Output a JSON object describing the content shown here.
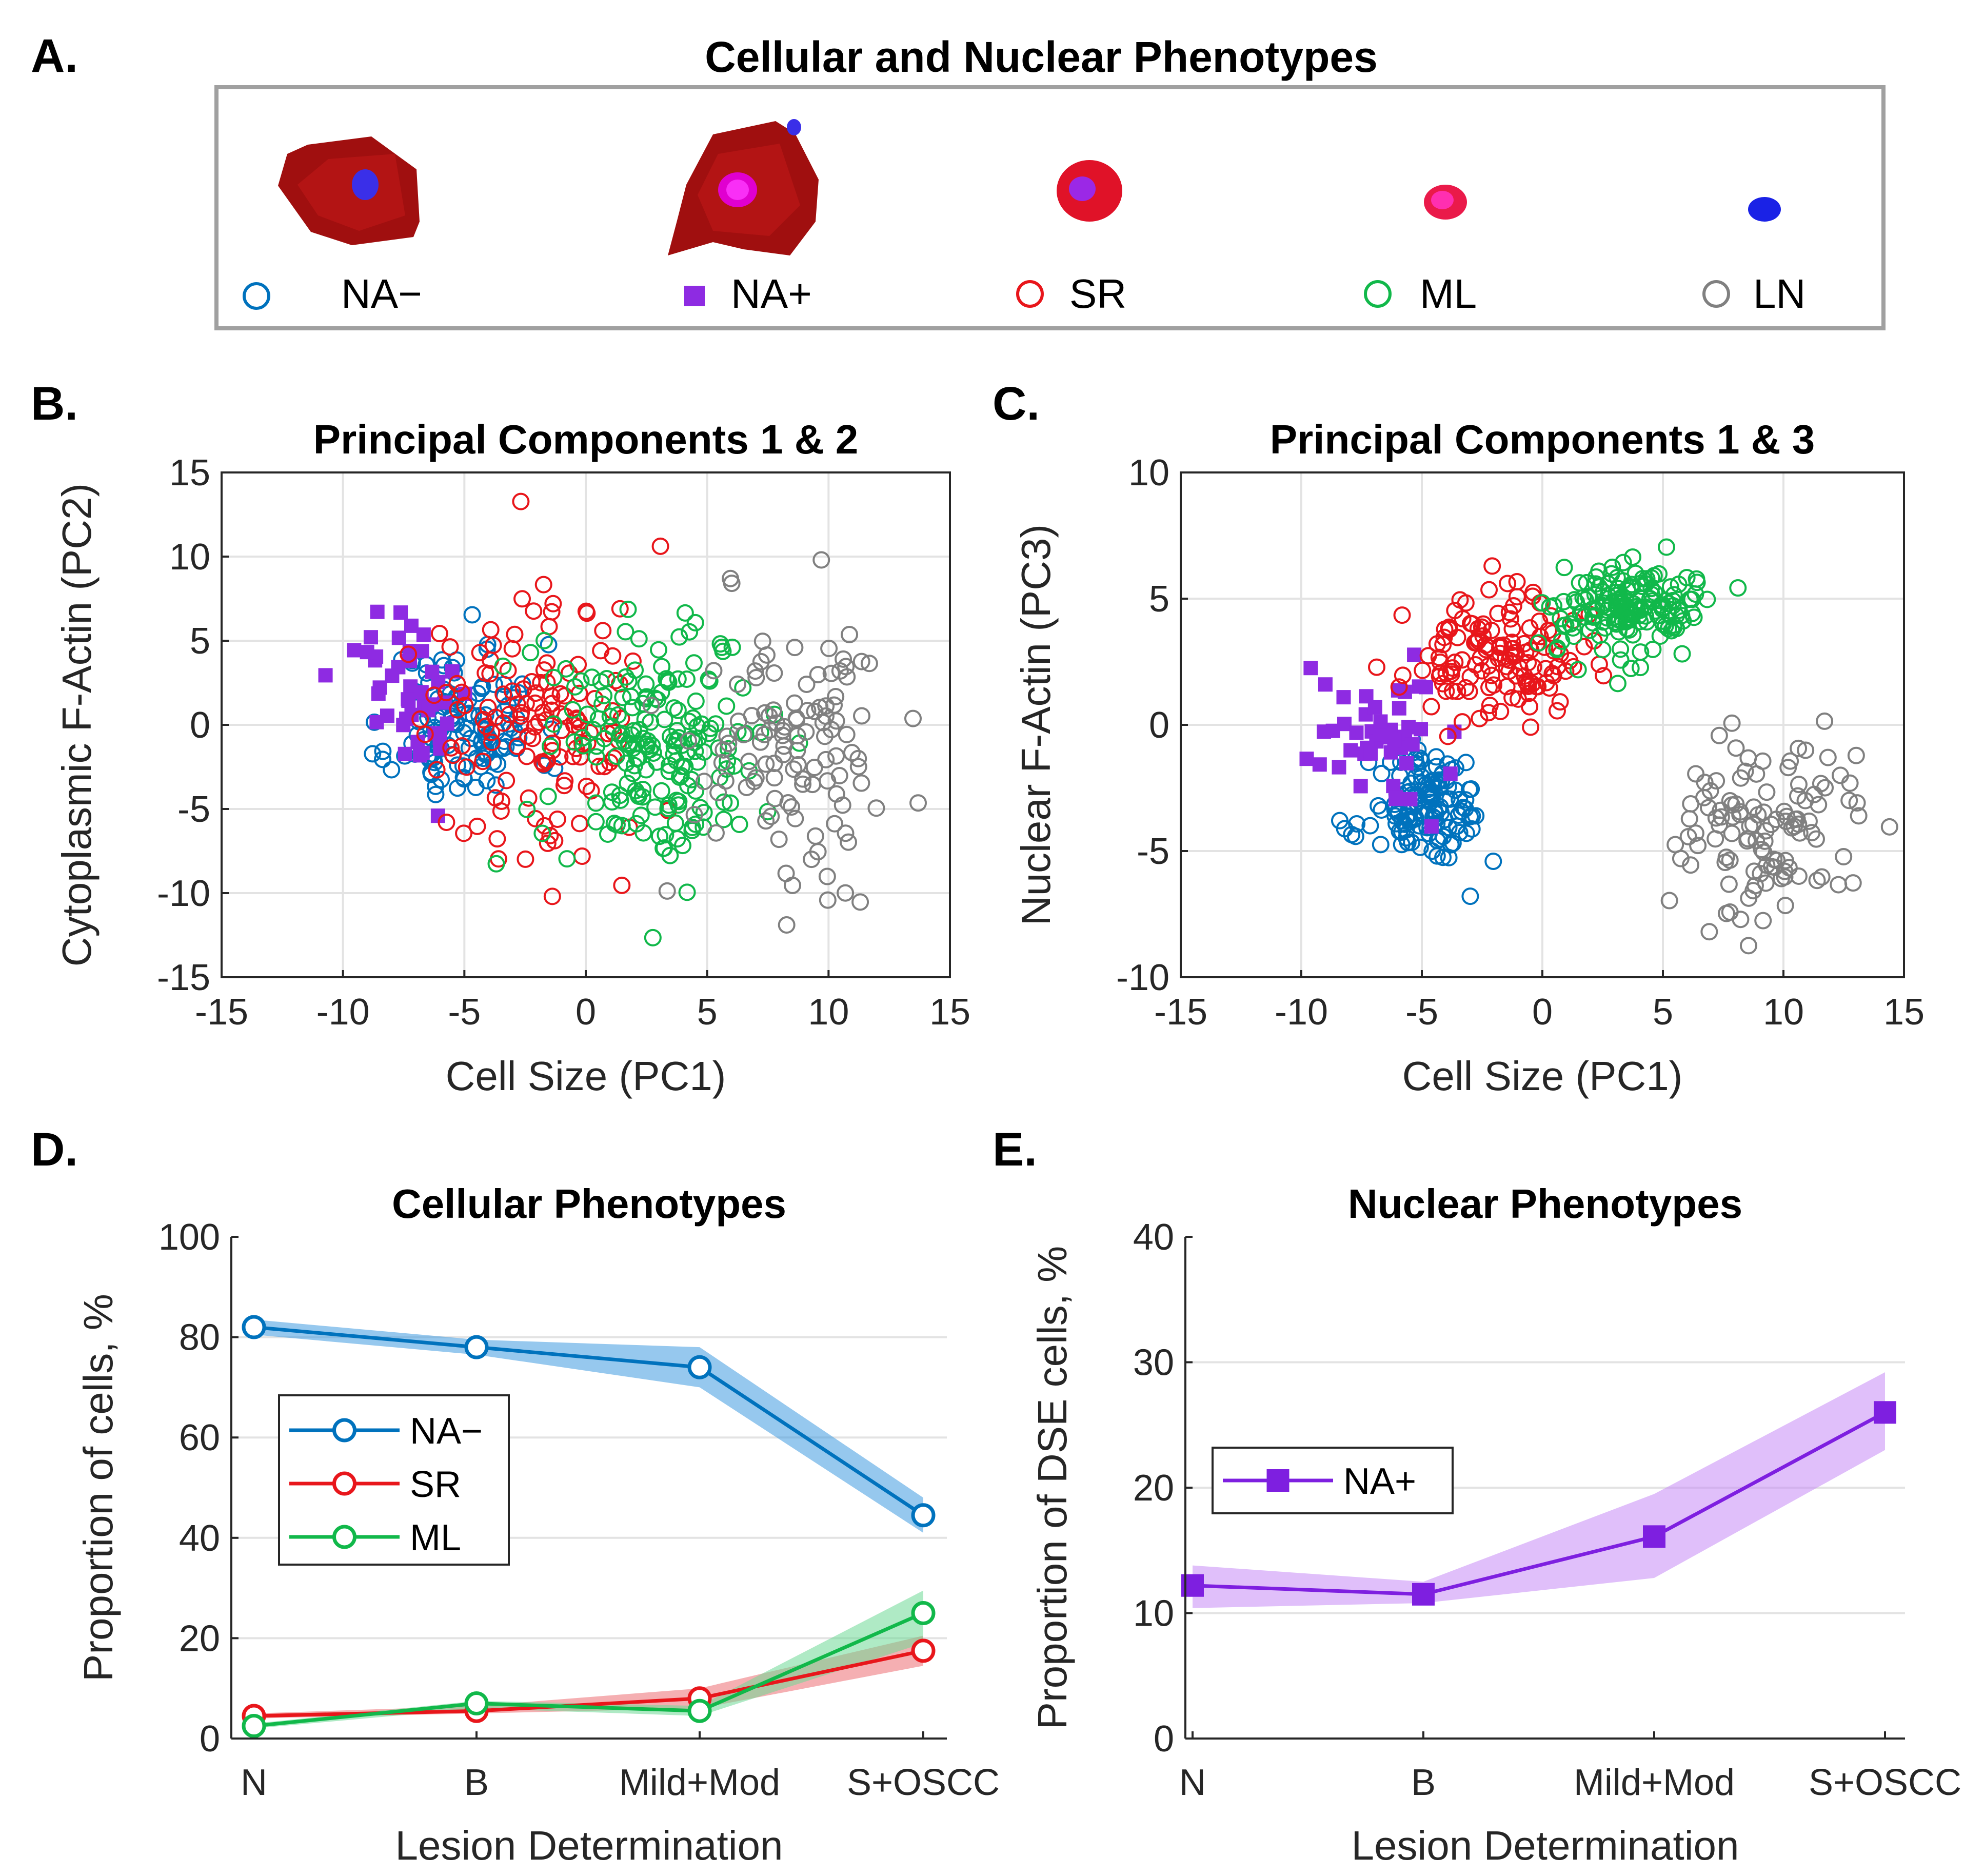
{
  "panel_labels": {
    "a": "A.",
    "b": "B.",
    "c": "C.",
    "d": "D.",
    "e": "E."
  },
  "phenotypes": {
    "title": "Cellular and Nuclear Phenotypes",
    "items": [
      {
        "label": "NA−",
        "color": "#0072BD",
        "marker": "circle"
      },
      {
        "label": "NA+",
        "color": "#8E2BE2",
        "marker": "square"
      },
      {
        "label": "SR",
        "color": "#E8161B",
        "marker": "circle"
      },
      {
        "label": "ML",
        "color": "#11B84A",
        "marker": "circle"
      },
      {
        "label": "LN",
        "color": "#808080",
        "marker": "circle"
      }
    ]
  },
  "chart_data": [
    {
      "id": "pc12",
      "type": "scatter",
      "title": "Principal Components 1 & 2",
      "xlabel": "Cell Size (PC1)",
      "ylabel": "Cytoplasmic F-Actin (PC2)",
      "xlim": [
        -15,
        15
      ],
      "ylim": [
        -15,
        15
      ],
      "xticks": [
        "-15",
        "-10",
        "-5",
        "0",
        "5",
        "10",
        "15"
      ],
      "yticks": [
        "15",
        "10",
        "5",
        "0",
        "-5",
        "-10",
        "-15"
      ],
      "grid": true,
      "series": [
        {
          "name": "NA−",
          "marker": "circle",
          "color": "#0072BD",
          "n": 125,
          "cx": -5.0,
          "cy": 0.0,
          "sx": 1.5,
          "sy": 2.4,
          "seed": 11
        },
        {
          "name": "NA+",
          "marker": "square",
          "color": "#8E2BE2",
          "n": 45,
          "cx": -7.0,
          "cy": 2.0,
          "sx": 1.4,
          "sy": 2.4,
          "seed": 12
        },
        {
          "name": "SR",
          "marker": "circle",
          "color": "#E8161B",
          "n": 140,
          "cx": -2.0,
          "cy": 0.0,
          "sx": 2.3,
          "sy": 4.0,
          "seed": 13
        },
        {
          "name": "ML",
          "marker": "circle",
          "color": "#11B84A",
          "n": 190,
          "cx": 3.0,
          "cy": -1.0,
          "sx": 2.2,
          "sy": 3.6,
          "seed": 14
        },
        {
          "name": "LN",
          "marker": "circle",
          "color": "#808080",
          "n": 115,
          "cx": 9.0,
          "cy": -1.0,
          "sx": 2.0,
          "sy": 4.2,
          "seed": 15
        }
      ]
    },
    {
      "id": "pc13",
      "type": "scatter",
      "title": "Principal Components 1 & 3",
      "xlabel": "Cell Size (PC1)",
      "ylabel": "Nuclear F-Actin (PC3)",
      "xlim": [
        -15,
        15
      ],
      "ylim": [
        -10,
        10
      ],
      "xticks": [
        "-15",
        "-10",
        "-5",
        "0",
        "5",
        "10",
        "15"
      ],
      "yticks": [
        "10",
        "5",
        "0",
        "-5",
        "-10"
      ],
      "grid": true,
      "series": [
        {
          "name": "NA−",
          "marker": "circle",
          "color": "#0072BD",
          "n": 135,
          "cx": -4.7,
          "cy": -3.4,
          "sx": 1.2,
          "sy": 1.1,
          "seed": 21
        },
        {
          "name": "NA+",
          "marker": "square",
          "color": "#8E2BE2",
          "n": 45,
          "cx": -7.0,
          "cy": -0.5,
          "sx": 1.5,
          "sy": 1.3,
          "seed": 22
        },
        {
          "name": "SR",
          "marker": "circle",
          "color": "#E8161B",
          "n": 140,
          "cx": -2.0,
          "cy": 2.6,
          "sx": 1.8,
          "sy": 1.2,
          "seed": 23
        },
        {
          "name": "ML",
          "marker": "circle",
          "color": "#11B84A",
          "n": 165,
          "cx": 3.2,
          "cy": 4.6,
          "sx": 1.6,
          "sy": 1.0,
          "seed": 24
        },
        {
          "name": "LN",
          "marker": "circle",
          "color": "#808080",
          "n": 115,
          "cx": 9.5,
          "cy": -4.3,
          "sx": 1.9,
          "sy": 1.6,
          "seed": 25
        }
      ]
    },
    {
      "id": "cellular",
      "type": "line",
      "title": "Cellular Phenotypes",
      "xlabel": "Lesion Determination",
      "ylabel": "Proportion of cells, %",
      "categories": [
        "N",
        "B",
        "Mild+Mod",
        "S+OSCC"
      ],
      "ylim": [
        0,
        100
      ],
      "yticks": [
        "100",
        "80",
        "60",
        "40",
        "20",
        "0"
      ],
      "grid": true,
      "legend_position": "left",
      "series": [
        {
          "name": "NA−",
          "marker": "circle",
          "color": "#0072BD",
          "band": "#3F9BE0",
          "values": [
            82,
            78,
            74,
            44.5
          ],
          "lower": [
            80.5,
            76.5,
            70,
            41
          ],
          "upper": [
            83.5,
            79.5,
            78,
            48
          ]
        },
        {
          "name": "SR",
          "marker": "circle",
          "color": "#E8161B",
          "band": "#EC6E72",
          "values": [
            4.5,
            5.5,
            8,
            17.5
          ],
          "lower": [
            4,
            5,
            6,
            14.5
          ],
          "upper": [
            5,
            6.5,
            10,
            20.5
          ]
        },
        {
          "name": "ML",
          "marker": "circle",
          "color": "#11B84A",
          "band": "#6ED996",
          "values": [
            2.5,
            7,
            5.5,
            25
          ],
          "lower": [
            2,
            6,
            4.5,
            19
          ],
          "upper": [
            3,
            7.5,
            6.5,
            29.5
          ]
        }
      ]
    },
    {
      "id": "nuclear",
      "type": "line",
      "title": "Nuclear Phenotypes",
      "xlabel": "Lesion Determination",
      "ylabel": "Proportion of DSE cells, %",
      "categories": [
        "N",
        "B",
        "Mild+Mod",
        "S+OSCC"
      ],
      "ylim": [
        0,
        40
      ],
      "yticks": [
        "40",
        "30",
        "20",
        "10",
        "0"
      ],
      "grid": true,
      "legend_position": "left",
      "series": [
        {
          "name": "NA+",
          "marker": "square",
          "color": "#7E1FE0",
          "band": "#C68AF5",
          "values": [
            12.2,
            11.5,
            16.1,
            26
          ],
          "lower": [
            10.4,
            10.8,
            12.8,
            23
          ],
          "upper": [
            13.8,
            12.5,
            19.5,
            29.2
          ]
        }
      ]
    }
  ]
}
